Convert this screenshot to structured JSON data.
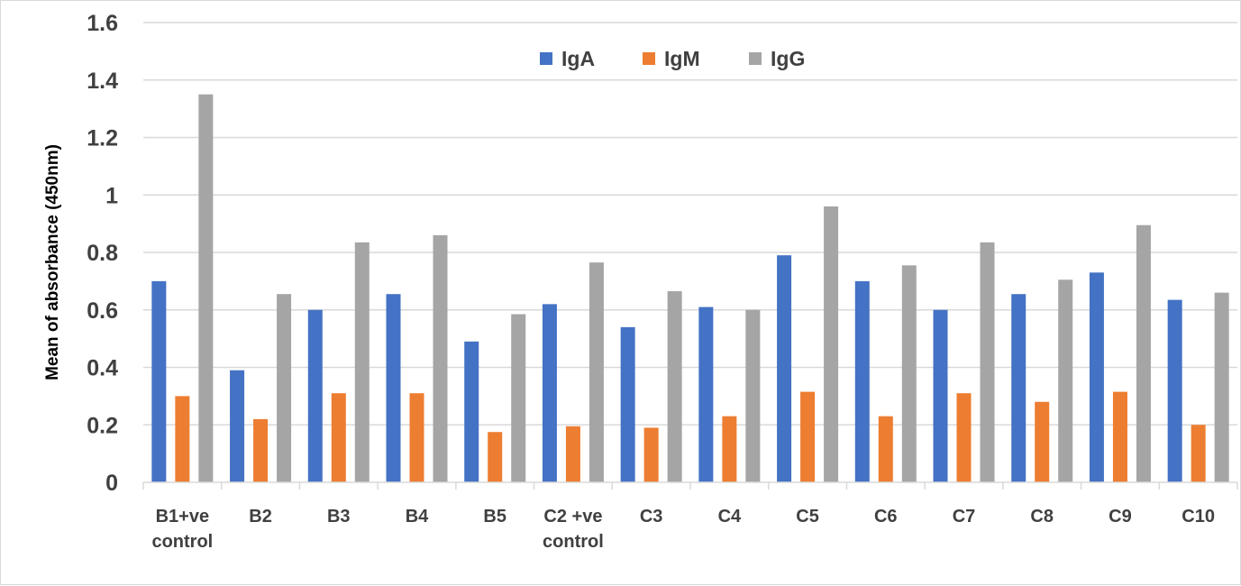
{
  "chart_data": {
    "type": "bar",
    "title": "",
    "xlabel": "",
    "ylabel": "Mean of absorbance  (450nm)",
    "ylim": [
      0,
      1.6
    ],
    "yticks": [
      "0",
      "0.2",
      "0.4",
      "0.6",
      "0.8",
      "1",
      "1.2",
      "1.4",
      "1.6"
    ],
    "grid": true,
    "legend_position": "top-center",
    "categories": [
      [
        "B1+ve",
        "control"
      ],
      [
        "B2"
      ],
      [
        "B3"
      ],
      [
        "B4"
      ],
      [
        "B5"
      ],
      [
        "C2 +ve",
        "control"
      ],
      [
        "C3"
      ],
      [
        "C4"
      ],
      [
        "C5"
      ],
      [
        "C6"
      ],
      [
        "C7"
      ],
      [
        "C8"
      ],
      [
        "C9"
      ],
      [
        "C10"
      ]
    ],
    "series": [
      {
        "name": "IgA",
        "color": "#4472c4",
        "values": [
          0.7,
          0.39,
          0.6,
          0.655,
          0.49,
          0.62,
          0.54,
          0.61,
          0.79,
          0.7,
          0.6,
          0.655,
          0.73,
          0.635
        ]
      },
      {
        "name": "IgM",
        "color": "#ed7d31",
        "values": [
          0.3,
          0.22,
          0.31,
          0.31,
          0.175,
          0.195,
          0.19,
          0.23,
          0.315,
          0.23,
          0.31,
          0.28,
          0.315,
          0.2
        ]
      },
      {
        "name": "IgG",
        "color": "#a5a5a5",
        "values": [
          1.35,
          0.655,
          0.835,
          0.86,
          0.585,
          0.765,
          0.665,
          0.6,
          0.96,
          0.755,
          0.835,
          0.705,
          0.895,
          0.66
        ]
      }
    ]
  }
}
